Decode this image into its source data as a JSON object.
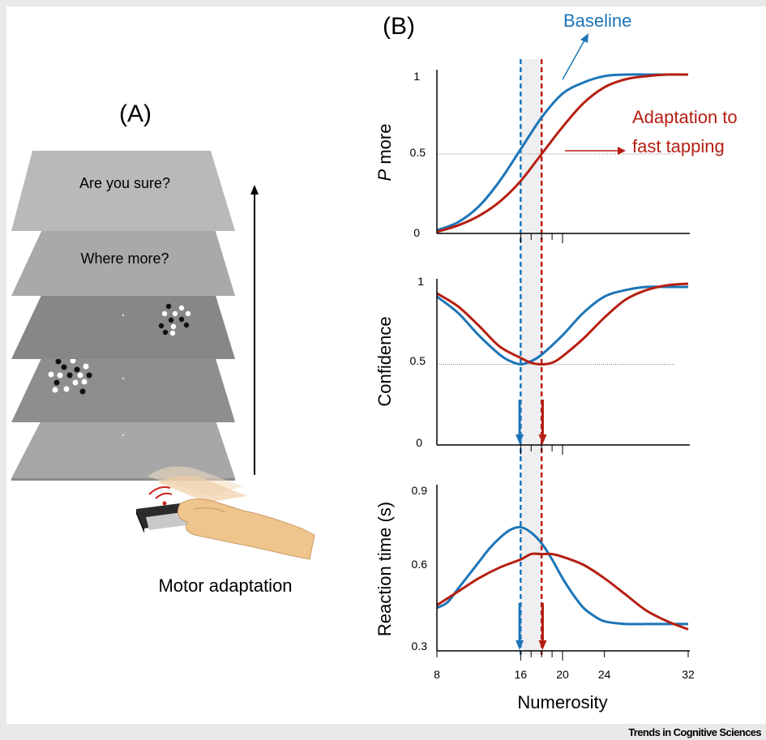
{
  "panel_a": {
    "label": "(A)",
    "screen_top_text": "Are you sure?",
    "screen_second_text": "Where more?",
    "caption": "Motor adaptation"
  },
  "panel_b": {
    "label": "(B)",
    "annotation_baseline": "Baseline",
    "annotation_adaptation_line1": "Adaptation to",
    "annotation_adaptation_line2": "fast tapping",
    "x_axis_label": "Numerosity",
    "x_ticks": [
      "8",
      "16",
      "20",
      "24",
      "32"
    ]
  },
  "credit": "Trends in Cognitive Sciences",
  "colors": {
    "baseline": "#1c75b7",
    "adaptation": "#b51f12",
    "shade": "#efeff1"
  },
  "chart_data": [
    {
      "type": "line",
      "ylabel_prefix": "P",
      "ylabel": "more",
      "yticks": [
        "0",
        "0.5",
        "1"
      ],
      "ylim": [
        0,
        1
      ],
      "xlim": [
        8,
        32
      ],
      "reference_y": 0.5,
      "series": [
        {
          "name": "Baseline",
          "x": [
            8,
            10,
            12,
            14,
            16,
            18,
            20,
            22,
            24,
            26,
            28,
            30,
            32
          ],
          "y": [
            0.02,
            0.07,
            0.17,
            0.33,
            0.53,
            0.73,
            0.88,
            0.95,
            0.99,
            1.0,
            1.0,
            1.0,
            1.0
          ]
        },
        {
          "name": "Adaptation to fast tapping",
          "x": [
            8,
            10,
            12,
            14,
            16,
            18,
            20,
            22,
            24,
            26,
            28,
            30,
            32
          ],
          "y": [
            0.01,
            0.05,
            0.11,
            0.2,
            0.33,
            0.5,
            0.67,
            0.82,
            0.92,
            0.97,
            0.99,
            1.0,
            1.0
          ]
        }
      ]
    },
    {
      "type": "line",
      "ylabel": "Confidence",
      "yticks": [
        "0",
        "0.5",
        "1"
      ],
      "ylim": [
        0,
        1
      ],
      "xlim": [
        8,
        32
      ],
      "reference_y": 0.5,
      "series": [
        {
          "name": "Baseline",
          "x": [
            8,
            10,
            12,
            14,
            15,
            16,
            17,
            18,
            20,
            22,
            24,
            26,
            28,
            30,
            32
          ],
          "y": [
            0.92,
            0.82,
            0.68,
            0.56,
            0.52,
            0.5,
            0.52,
            0.56,
            0.68,
            0.82,
            0.92,
            0.96,
            0.98,
            0.98,
            0.98
          ]
        },
        {
          "name": "Adaptation to fast tapping",
          "x": [
            8,
            10,
            12,
            14,
            16,
            17,
            18,
            19,
            20,
            22,
            24,
            26,
            28,
            30,
            32
          ],
          "y": [
            0.94,
            0.86,
            0.74,
            0.61,
            0.54,
            0.51,
            0.5,
            0.51,
            0.55,
            0.66,
            0.79,
            0.9,
            0.96,
            0.99,
            1.0
          ]
        }
      ]
    },
    {
      "type": "line",
      "ylabel": "Reaction time (s)",
      "yticks": [
        "0.3",
        "0.6",
        "0.9"
      ],
      "ylim": [
        0.3,
        0.9
      ],
      "xlim": [
        8,
        32
      ],
      "xticks": [
        8,
        16,
        20,
        24,
        32
      ],
      "series": [
        {
          "name": "Baseline",
          "x": [
            8,
            9,
            10,
            11,
            12,
            13,
            14,
            15,
            16,
            17,
            18,
            19,
            20,
            21,
            22,
            23,
            24,
            26,
            28,
            30,
            32
          ],
          "y": [
            0.46,
            0.48,
            0.53,
            0.58,
            0.63,
            0.68,
            0.72,
            0.75,
            0.76,
            0.74,
            0.7,
            0.64,
            0.57,
            0.51,
            0.46,
            0.43,
            0.41,
            0.4,
            0.4,
            0.4,
            0.4
          ]
        },
        {
          "name": "Adaptation to fast tapping",
          "x": [
            8,
            10,
            12,
            14,
            16,
            17,
            18,
            19,
            20,
            22,
            24,
            26,
            28,
            30,
            32
          ],
          "y": [
            0.47,
            0.52,
            0.57,
            0.61,
            0.64,
            0.66,
            0.66,
            0.66,
            0.65,
            0.62,
            0.57,
            0.51,
            0.45,
            0.41,
            0.38
          ]
        }
      ]
    }
  ],
  "markers": {
    "baseline_x": 16,
    "adaptation_x": 18,
    "shade_x": [
      16,
      18
    ]
  }
}
